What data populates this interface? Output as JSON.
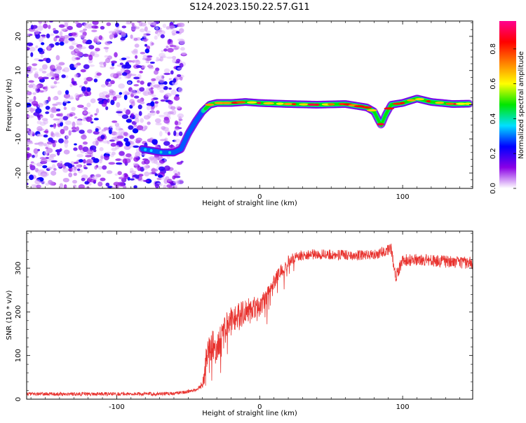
{
  "title": "S124.2023.150.22.57.G11",
  "colors": {
    "line": "#e8322e",
    "axis": "#000000"
  },
  "spectrogram": {
    "xlabel": "Height of straight line (km)",
    "ylabel": "Frequency (Hz)",
    "xlim": [
      -163,
      149
    ],
    "ylim": [
      -24.5,
      24.5
    ],
    "xticks": [
      -100,
      0,
      100
    ],
    "yticks": [
      -20,
      -10,
      0,
      10,
      20
    ]
  },
  "colorbar": {
    "label": "Normalized spectral amplitude",
    "range": [
      0,
      0.96
    ],
    "ticks": [
      "0.0",
      "0.2",
      "0.4",
      "0.6",
      "0.8"
    ],
    "colors": [
      "#ffffff",
      "#8a00e6",
      "#0000ff",
      "#00e0ff",
      "#00e600",
      "#ffff00",
      "#ff8000",
      "#ff0000",
      "#ff0090"
    ]
  },
  "chart_data": [
    {
      "type": "heatmap",
      "xlabel": "Height of straight line (km)",
      "ylabel": "Frequency (Hz)",
      "xlim": [
        -163,
        149
      ],
      "ylim": [
        -24.5,
        24.5
      ],
      "ridge": {
        "x": [
          -82,
          -75,
          -68,
          -60,
          -55,
          -50,
          -45,
          -40,
          -35,
          -30,
          -20,
          -10,
          0,
          20,
          40,
          60,
          75,
          80,
          83,
          85,
          88,
          92,
          100,
          110,
          120,
          135,
          147
        ],
        "y": [
          -13,
          -13.5,
          -14,
          -14,
          -13,
          -8.5,
          -5,
          -2,
          0,
          0.5,
          0.5,
          0.8,
          0.5,
          0.2,
          0,
          0.2,
          -0.8,
          -2,
          -4.5,
          -6,
          -3,
          0,
          0.5,
          1.8,
          0.8,
          0.2,
          0.3
        ]
      },
      "noise_region_x": [
        -163,
        -53
      ]
    },
    {
      "type": "line",
      "xlabel": "Height of straight line (km)",
      "ylabel": "SNR (10 * v/v)",
      "xlim": [
        -163,
        149
      ],
      "ylim": [
        0,
        385
      ],
      "xticks": [
        -100,
        0,
        100
      ],
      "yticks": [
        0,
        100,
        200,
        300
      ],
      "envelope": {
        "x": [
          -163,
          -120,
          -80,
          -60,
          -45,
          -40,
          -37,
          -35,
          -30,
          -25,
          -20,
          -15,
          -10,
          -5,
          0,
          5,
          10,
          15,
          20,
          25,
          30,
          40,
          60,
          80,
          88,
          92,
          95,
          100,
          110,
          130,
          149
        ],
        "y": [
          12,
          12,
          12,
          13,
          20,
          35,
          100,
          120,
          120,
          150,
          190,
          190,
          200,
          210,
          210,
          240,
          270,
          295,
          315,
          325,
          330,
          332,
          330,
          330,
          340,
          345,
          280,
          318,
          320,
          315,
          312
        ]
      },
      "noise_amplitude": {
        "x": [
          -163,
          -42,
          -35,
          25,
          85,
          100,
          149
        ],
        "y": [
          4,
          4,
          40,
          12,
          12,
          14,
          14
        ]
      }
    }
  ]
}
